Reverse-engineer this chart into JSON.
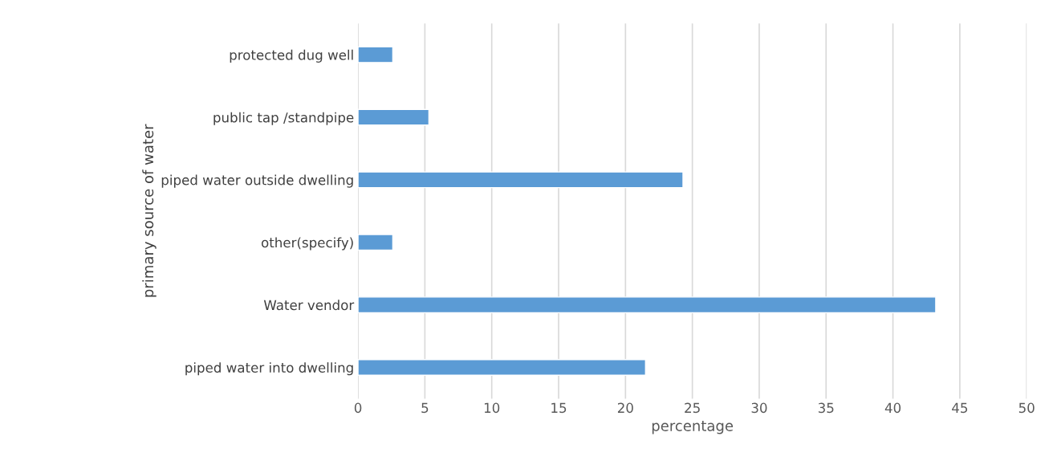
{
  "chart_data": {
    "type": "bar",
    "orientation": "horizontal",
    "categories": [
      "protected dug well",
      "public tap /standpipe",
      "piped water outside dwelling",
      "other(specify)",
      "Water vendor",
      "piped water into dwelling"
    ],
    "values": [
      2.6,
      5.3,
      24.3,
      2.6,
      43.2,
      21.5
    ],
    "color": "#5b9bd5",
    "xlabel": "percentage",
    "ylabel": "primary source of water",
    "xlim": [
      0,
      50
    ],
    "xticks": [
      0,
      5,
      10,
      15,
      20,
      25,
      30,
      35,
      40,
      45,
      50
    ],
    "grid": "x"
  }
}
